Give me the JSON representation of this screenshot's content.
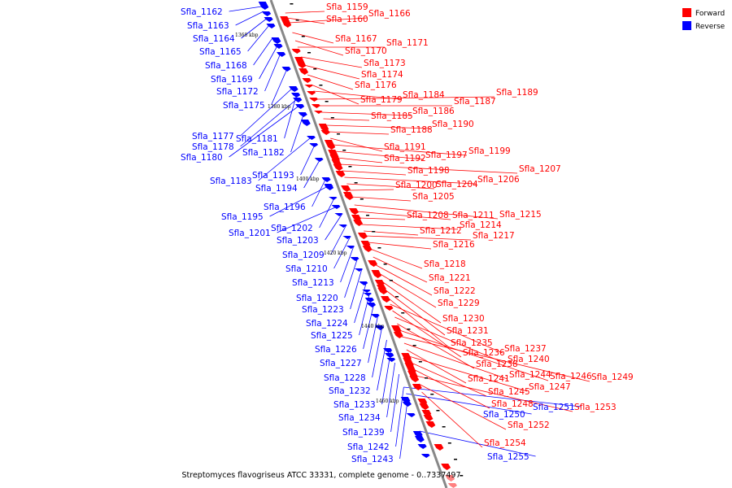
{
  "caption": "Streptomyces flavogriseus ATCC 33331, complete genome - 0..7337497",
  "legend": [
    {
      "label": "Forward",
      "color": "#ff0000"
    },
    {
      "label": "Reverse",
      "color": "#0000ff"
    }
  ],
  "colors": {
    "forward": "#ff0000",
    "reverse": "#0000ff",
    "backbone": "#888888",
    "faded": "#ff8080"
  },
  "ticks": [
    "1360 kbp",
    "1380 kbp",
    "1400 kbp",
    "1420 kbp",
    "1440 kbp",
    "1460 kbp"
  ],
  "reverse_genes": [
    "Sfla_1162",
    "Sfla_1163",
    "Sfla_1164",
    "Sfla_1165",
    "Sfla_1168",
    "Sfla_1169",
    "Sfla_1172",
    "Sfla_1175",
    "Sfla_1177",
    "Sfla_1181",
    "Sfla_1178",
    "Sfla_1180",
    "Sfla_1182",
    "Sfla_1183",
    "Sfla_1193",
    "Sfla_1194",
    "Sfla_1196",
    "Sfla_1195",
    "Sfla_1202",
    "Sfla_1201",
    "Sfla_1203",
    "Sfla_1209",
    "Sfla_1210",
    "Sfla_1213",
    "Sfla_1220",
    "Sfla_1223",
    "Sfla_1224",
    "Sfla_1225",
    "Sfla_1226",
    "Sfla_1227",
    "Sfla_1228",
    "Sfla_1232",
    "Sfla_1233",
    "Sfla_1234",
    "Sfla_1239",
    "Sfla_1242",
    "Sfla_1243",
    "Sfla_1250",
    "Sfla_1251",
    "Sfla_1255"
  ],
  "forward_genes": [
    "Sfla_1159",
    "Sfla_1160",
    "Sfla_1166",
    "Sfla_1167",
    "Sfla_1170",
    "Sfla_1171",
    "Sfla_1173",
    "Sfla_1174",
    "Sfla_1176",
    "Sfla_1179",
    "Sfla_1184",
    "Sfla_1189",
    "Sfla_1187",
    "Sfla_1186",
    "Sfla_1185",
    "Sfla_1190",
    "Sfla_1188",
    "Sfla_1191",
    "Sfla_1199",
    "Sfla_1197",
    "Sfla_1192",
    "Sfla_1207",
    "Sfla_1198",
    "Sfla_1206",
    "Sfla_1204",
    "Sfla_1200",
    "Sfla_1205",
    "Sfla_1215",
    "Sfla_1211",
    "Sfla_1208",
    "Sfla_1214",
    "Sfla_1212",
    "Sfla_1217",
    "Sfla_1216",
    "Sfla_1218",
    "Sfla_1221",
    "Sfla_1222",
    "Sfla_1229",
    "Sfla_1230",
    "Sfla_1231",
    "Sfla_1235",
    "Sfla_1237",
    "Sfla_1236",
    "Sfla_1240",
    "Sfla_1238",
    "Sfla_1246",
    "Sfla_1249",
    "Sfla_1244",
    "Sfla_1241",
    "Sfla_1247",
    "Sfla_1245",
    "Sfla_1248",
    "Sfla_1253",
    "Sfla_1252",
    "Sfla_1254"
  ]
}
